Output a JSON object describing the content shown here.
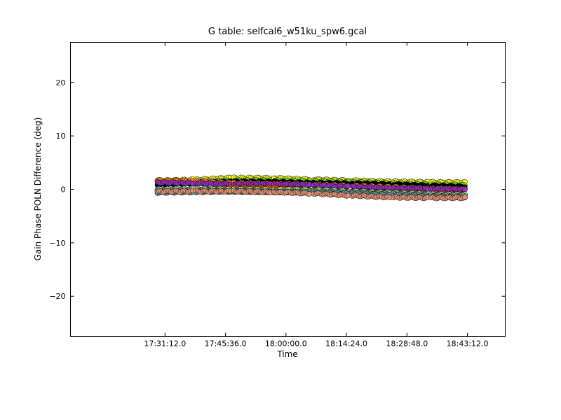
{
  "chart_data": {
    "type": "scatter",
    "title": "G table: selfcal6_w51ku_spw6.gcal",
    "xlabel": "Time",
    "ylabel": "Gain Phase POLN Difference (deg)",
    "x_ticks": [
      "17:31:12.0",
      "17:45:36.0",
      "18:00:00.0",
      "18:14:24.0",
      "18:28:48.0",
      "18:43:12.0"
    ],
    "x_tick_seconds": [
      63072,
      63936,
      64800,
      65664,
      66528,
      67392
    ],
    "xlim_seconds": [
      61722,
      67932
    ],
    "ylim": [
      -27.5,
      27.5
    ],
    "y_ticks": [
      -20,
      -10,
      0,
      10,
      20
    ],
    "grid": false,
    "scans": [
      {
        "start": "17:29:24",
        "end": "17:37:48"
      },
      {
        "start": "17:38:36",
        "end": "17:46:48"
      },
      {
        "start": "17:47:36",
        "end": "17:56:24"
      },
      {
        "start": "17:57:12",
        "end": "18:05:36"
      },
      {
        "start": "18:06:36",
        "end": "18:14:48"
      },
      {
        "start": "18:15:48",
        "end": "18:24:48"
      },
      {
        "start": "18:25:36",
        "end": "18:33:48"
      },
      {
        "start": "18:34:36",
        "end": "18:42:36"
      }
    ],
    "series": [
      {
        "color": "#ffff33",
        "values": [
          1.6,
          2.0,
          2.3,
          1.9,
          1.8,
          1.5,
          1.4,
          1.3
        ]
      },
      {
        "color": "#7fff00",
        "values": [
          1.2,
          1.5,
          1.8,
          1.5,
          1.5,
          1.2,
          1.0,
          0.8
        ]
      },
      {
        "color": "#000000",
        "values": [
          0.9,
          1.3,
          1.6,
          1.2,
          1.2,
          1.0,
          0.9,
          0.5
        ]
      },
      {
        "color": "#ff8c00",
        "values": [
          1.7,
          1.3,
          1.1,
          1.0,
          0.8,
          0.6,
          0.3,
          0.0
        ]
      },
      {
        "color": "#9932cc",
        "values": [
          1.3,
          1.0,
          1.0,
          1.0,
          0.7,
          0.3,
          0.2,
          0.0
        ]
      },
      {
        "color": "#ff4500",
        "values": [
          -0.3,
          0.0,
          0.6,
          0.0,
          -0.3,
          -0.5,
          -0.6,
          -0.9
        ]
      },
      {
        "color": "#90ee90",
        "values": [
          0.0,
          0.1,
          -0.1,
          0.0,
          -0.2,
          -0.5,
          -0.8,
          -1.0
        ]
      },
      {
        "color": "#a0a0a0",
        "values": [
          -0.3,
          -0.2,
          -0.6,
          -0.4,
          -0.5,
          -0.7,
          -1.0,
          -1.2
        ]
      },
      {
        "color": "#5f9ea0",
        "values": [
          -0.6,
          -0.4,
          -0.3,
          -0.6,
          -0.6,
          -0.9,
          -1.2,
          -1.5
        ]
      },
      {
        "color": "#e9967a",
        "values": [
          -0.4,
          -0.3,
          -0.4,
          -0.6,
          -0.9,
          -1.4,
          -1.6,
          -1.6
        ]
      }
    ]
  }
}
